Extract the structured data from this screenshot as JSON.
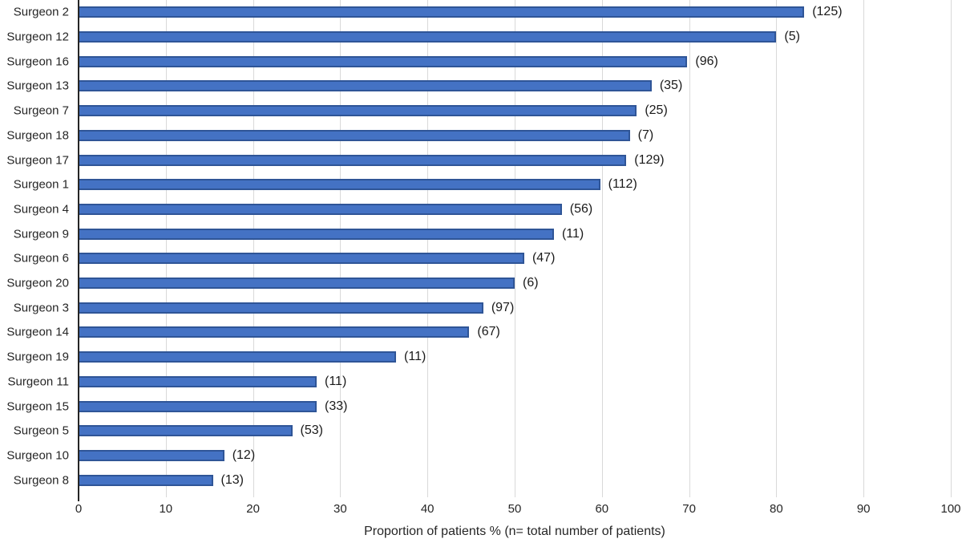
{
  "chart_data": {
    "type": "bar",
    "orientation": "horizontal",
    "title": "",
    "xlabel": "Proportion of patients % (n= total number of patients)",
    "ylabel": "",
    "xlim": [
      0,
      100
    ],
    "xticks": [
      0,
      10,
      20,
      30,
      40,
      50,
      60,
      70,
      80,
      90,
      100
    ],
    "grid": "vertical",
    "legend": "none",
    "categories": [
      "Surgeon 2",
      "Surgeon 12",
      "Surgeon 16",
      "Surgeon 13",
      "Surgeon 7",
      "Surgeon 18",
      "Surgeon 17",
      "Surgeon 1",
      "Surgeon 4",
      "Surgeon 9",
      "Surgeon 6",
      "Surgeon 20",
      "Surgeon 3",
      "Surgeon 14",
      "Surgeon 19",
      "Surgeon 11",
      "Surgeon 15",
      "Surgeon 5",
      "Surgeon 10",
      "Surgeon 8"
    ],
    "values": [
      83.2,
      80.0,
      69.8,
      65.7,
      64.0,
      63.2,
      62.8,
      59.8,
      55.4,
      54.5,
      51.1,
      50.0,
      46.4,
      44.8,
      36.4,
      27.3,
      27.3,
      24.5,
      16.7,
      15.4
    ],
    "n_totals": [
      125,
      5,
      96,
      35,
      25,
      7,
      129,
      112,
      56,
      11,
      47,
      6,
      97,
      67,
      11,
      11,
      33,
      53,
      12,
      13
    ],
    "bar_labels": [
      "(125)",
      "(5)",
      "(96)",
      "(35)",
      "(25)",
      "(7)",
      "(129)",
      "(112)",
      "(56)",
      "(11)",
      "(47)",
      "(6)",
      "(97)",
      "(67)",
      "(11)",
      "(11)",
      "(33)",
      "(53)",
      "(12)",
      "(13)"
    ],
    "colors": {
      "bar_fill": "#4472C4",
      "bar_border": "#2F5597",
      "gridline": "#D9D9D9",
      "axis_line": "#262626",
      "text": "#262626"
    }
  }
}
